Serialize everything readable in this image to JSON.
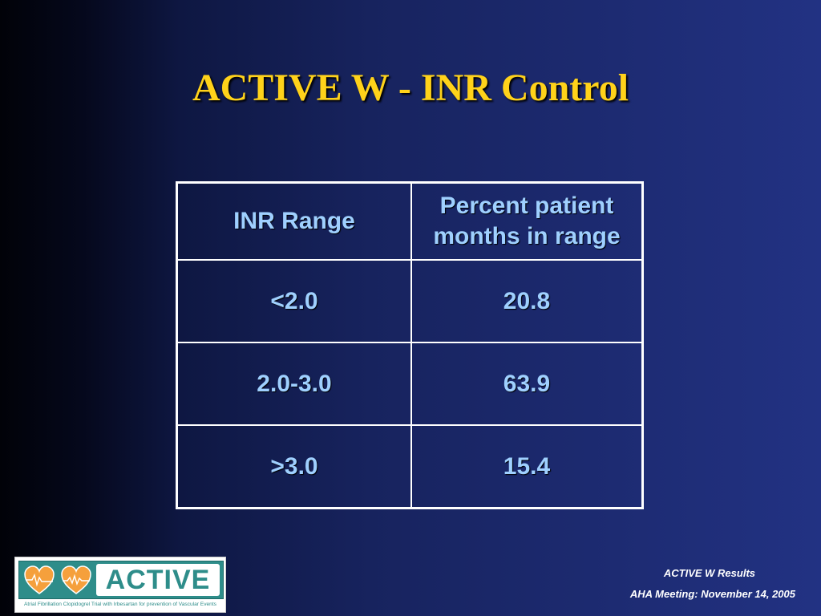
{
  "slide": {
    "title": "ACTIVE W - INR Control"
  },
  "table": {
    "headers": {
      "range": "INR Range",
      "percent_line1": "Percent patient",
      "percent_line2": "months in range"
    },
    "rows": [
      {
        "range": "<2.0",
        "percent": "20.8"
      },
      {
        "range": "2.0-3.0",
        "percent": "63.9"
      },
      {
        "range": ">3.0",
        "percent": "15.4"
      }
    ]
  },
  "logo": {
    "word": "ACTIVE",
    "tagline": "Atrial Fibrillation Clopidogrel Trial with Irbesartan for prevention of Vascular Events"
  },
  "footer": {
    "line1": "ACTIVE W Results",
    "line2": "AHA Meeting: November 14, 2005"
  },
  "colors": {
    "title": "#ffd21a",
    "table_text": "#9fd0ff",
    "logo_teal": "#2e8d8a",
    "heart_orange": "#f5a03c"
  }
}
